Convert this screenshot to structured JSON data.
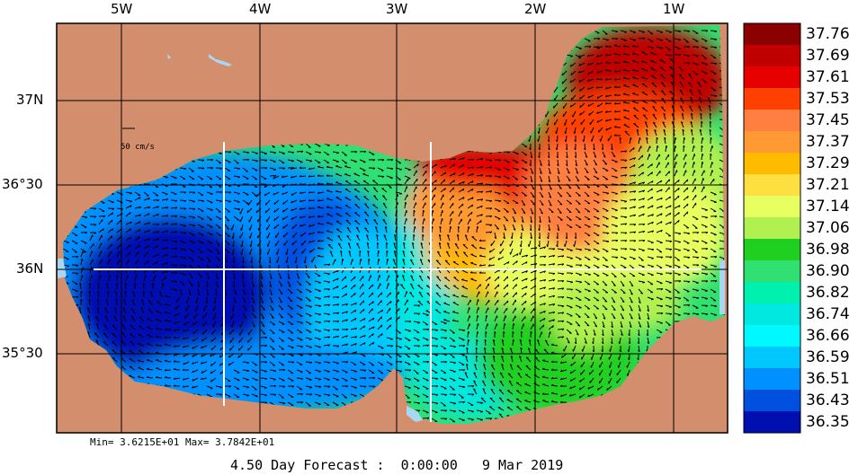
{
  "map": {
    "lon_labels": [
      "5W",
      "4W",
      "3W",
      "2W",
      "1W"
    ],
    "lat_labels": [
      "37N",
      "36°30",
      "36N",
      "35°30"
    ],
    "velocity_scale_label": "50 cm/s",
    "min_max_text": "Min= 3.6215E+01  Max= 3.7842E+01",
    "footer_text": "4.50 Day Forecast :  0:00:00   9 Mar 2019",
    "land_color": "#d38e6e",
    "grid_color": "#000000",
    "section_line_color": "#ffffff"
  },
  "colorbar": {
    "labels": [
      "37.76",
      "37.69",
      "37.61",
      "37.53",
      "37.45",
      "37.37",
      "37.29",
      "37.21",
      "37.14",
      "37.06",
      "36.98",
      "36.90",
      "36.82",
      "36.74",
      "36.66",
      "36.59",
      "36.51",
      "36.43",
      "36.35"
    ],
    "colors": [
      "#8b0000",
      "#c00000",
      "#e60000",
      "#ff4000",
      "#ff7f40",
      "#ff9933",
      "#ffbb00",
      "#ffe040",
      "#e8ff60",
      "#b0f050",
      "#20d020",
      "#30e070",
      "#00f0b0",
      "#00e8e0",
      "#00f8ff",
      "#00c8ff",
      "#0090ff",
      "#0050e0",
      "#0010b0"
    ]
  }
}
